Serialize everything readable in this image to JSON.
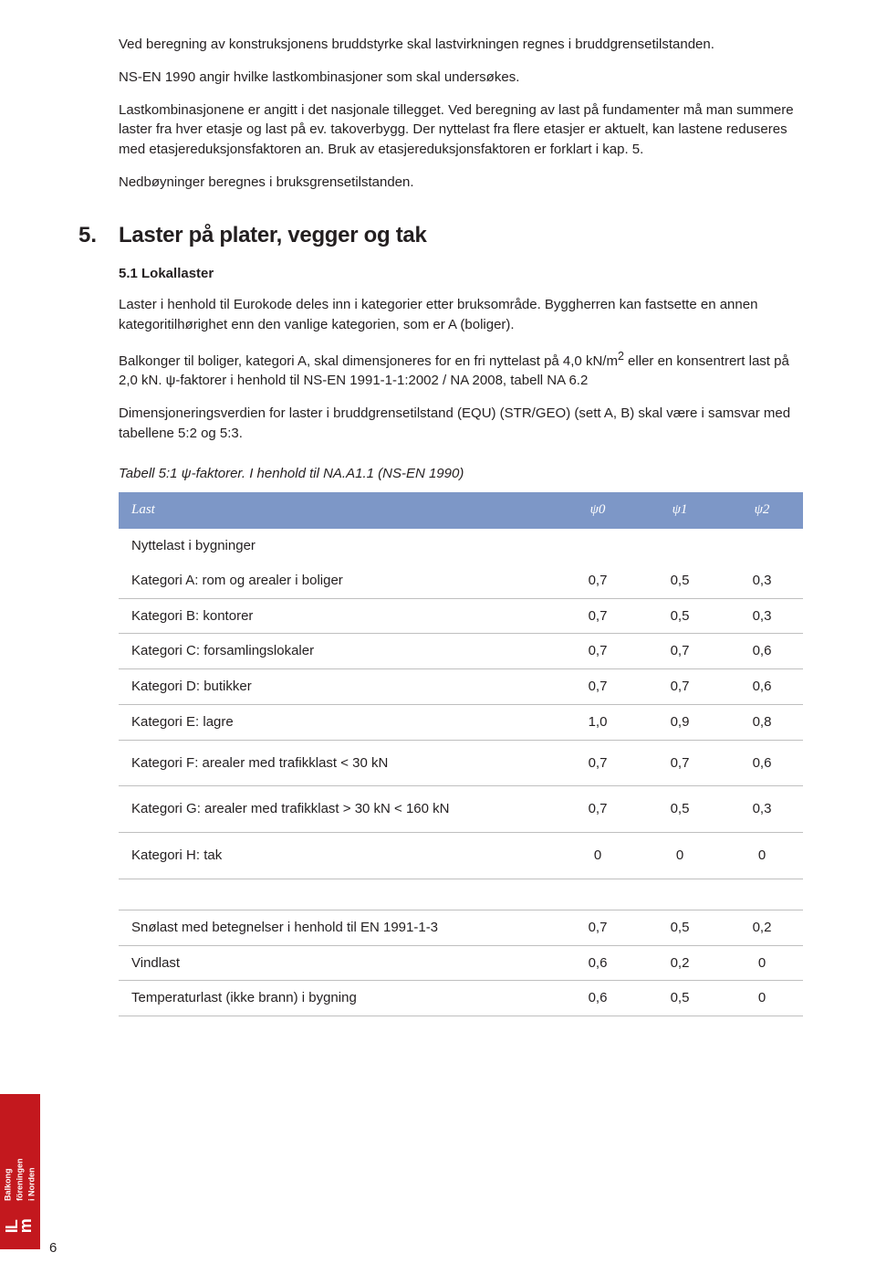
{
  "paragraphs": {
    "p1": "Ved beregning av konstruksjonens bruddstyrke skal lastvirkningen regnes i bruddgrensetilstanden.",
    "p2": "NS-EN 1990 angir hvilke lastkombinasjoner som skal undersøkes.",
    "p3": "Lastkombinasjonene er angitt i det nasjonale tillegget. Ved beregning av last på fundamenter må man summere laster fra hver etasje og last  på ev. takoverbygg. Der nyttelast fra flere etasjer er aktuelt, kan lastene reduseres med etasjereduksjonsfaktoren an. Bruk av etasjereduksjonsfaktoren er forklart i kap. 5.",
    "p4": "Nedbøyninger beregnes i bruksgrensetilstanden."
  },
  "section": {
    "number": "5.",
    "title": "Laster på plater, vegger og tak"
  },
  "subsection": "5.1 Lokallaster",
  "content": {
    "c1": "Laster i henhold til Eurokode deles inn i kategorier etter bruksområde. Byggherren kan fastsette en annen kategoritilhørighet enn den vanlige kategorien, som er A (boliger).",
    "c2a": "Balkonger til boliger, kategori A, skal dimensjoneres for en fri nyttelast på 4,0 kN/m",
    "c2b": " eller en konsentrert last på 2,0 kN. ψ-faktorer  i henhold til NS-EN 1991-1-1:2002 / NA 2008, tabell NA 6.2",
    "c3": "Dimensjoneringsverdien for laster i bruddgrensetilstand (EQU) (STR/GEO) (sett A, B) skal være i samsvar med tabellene 5:2 og 5:3."
  },
  "table_caption": "Tabell 5:1   ψ-faktorer. I henhold til NA.A1.1 (NS-EN 1990)",
  "table": {
    "header": {
      "col0": "Last",
      "col1": "ψ0",
      "col2": "ψ1",
      "col3": "ψ2"
    },
    "rows": [
      {
        "label": "Nyttelast i bygninger",
        "v0": "",
        "v1": "",
        "v2": "",
        "noborder": true
      },
      {
        "label": "Kategori A: rom og arealer i boliger",
        "v0": "0,7",
        "v1": "0,5",
        "v2": "0,3"
      },
      {
        "label": "Kategori B:  kontorer",
        "v0": "0,7",
        "v1": "0,5",
        "v2": "0,3"
      },
      {
        "label": "Kategori C: forsamlingslokaler",
        "v0": "0,7",
        "v1": "0,7",
        "v2": "0,6"
      },
      {
        "label": "Kategori D: butikker",
        "v0": "0,7",
        "v1": "0,7",
        "v2": "0,6"
      },
      {
        "label": "Kategori E:  lagre",
        "v0": "1,0",
        "v1": "0,9",
        "v2": "0,8"
      },
      {
        "label": "Kategori F:  arealer med trafikklast < 30 kN",
        "v0": "0,7",
        "v1": "0,7",
        "v2": "0,6",
        "extra": true
      },
      {
        "label": "Kategori G: arealer med trafikklast > 30 kN < 160 kN",
        "v0": "0,7",
        "v1": "0,5",
        "v2": "0,3",
        "extra": true
      },
      {
        "label": "Kategori H: tak",
        "v0": "0",
        "v1": "0",
        "v2": "0",
        "extra": true
      },
      {
        "spacer": true
      },
      {
        "label": "Snølast med betegnelser i henhold til EN 1991-1-3",
        "v0": "0,7",
        "v1": "0,5",
        "v2": "0,2"
      },
      {
        "label": "Vindlast",
        "v0": "0,6",
        "v1": "0,2",
        "v2": "0"
      },
      {
        "label": "Temperaturlast (ikke brann) i bygning",
        "v0": "0,6",
        "v1": "0,5",
        "v2": "0"
      }
    ]
  },
  "sidebar": {
    "line1": "Balkong",
    "line2": "föreningen",
    "line3": "i Norden",
    "logo1": "IL",
    "logo2": "m"
  },
  "page_number": "6",
  "colors": {
    "table_header_bg": "#7d97c7",
    "table_border": "#bfbfbf",
    "sidebar_bg": "#c3181e",
    "text": "#231f20"
  }
}
